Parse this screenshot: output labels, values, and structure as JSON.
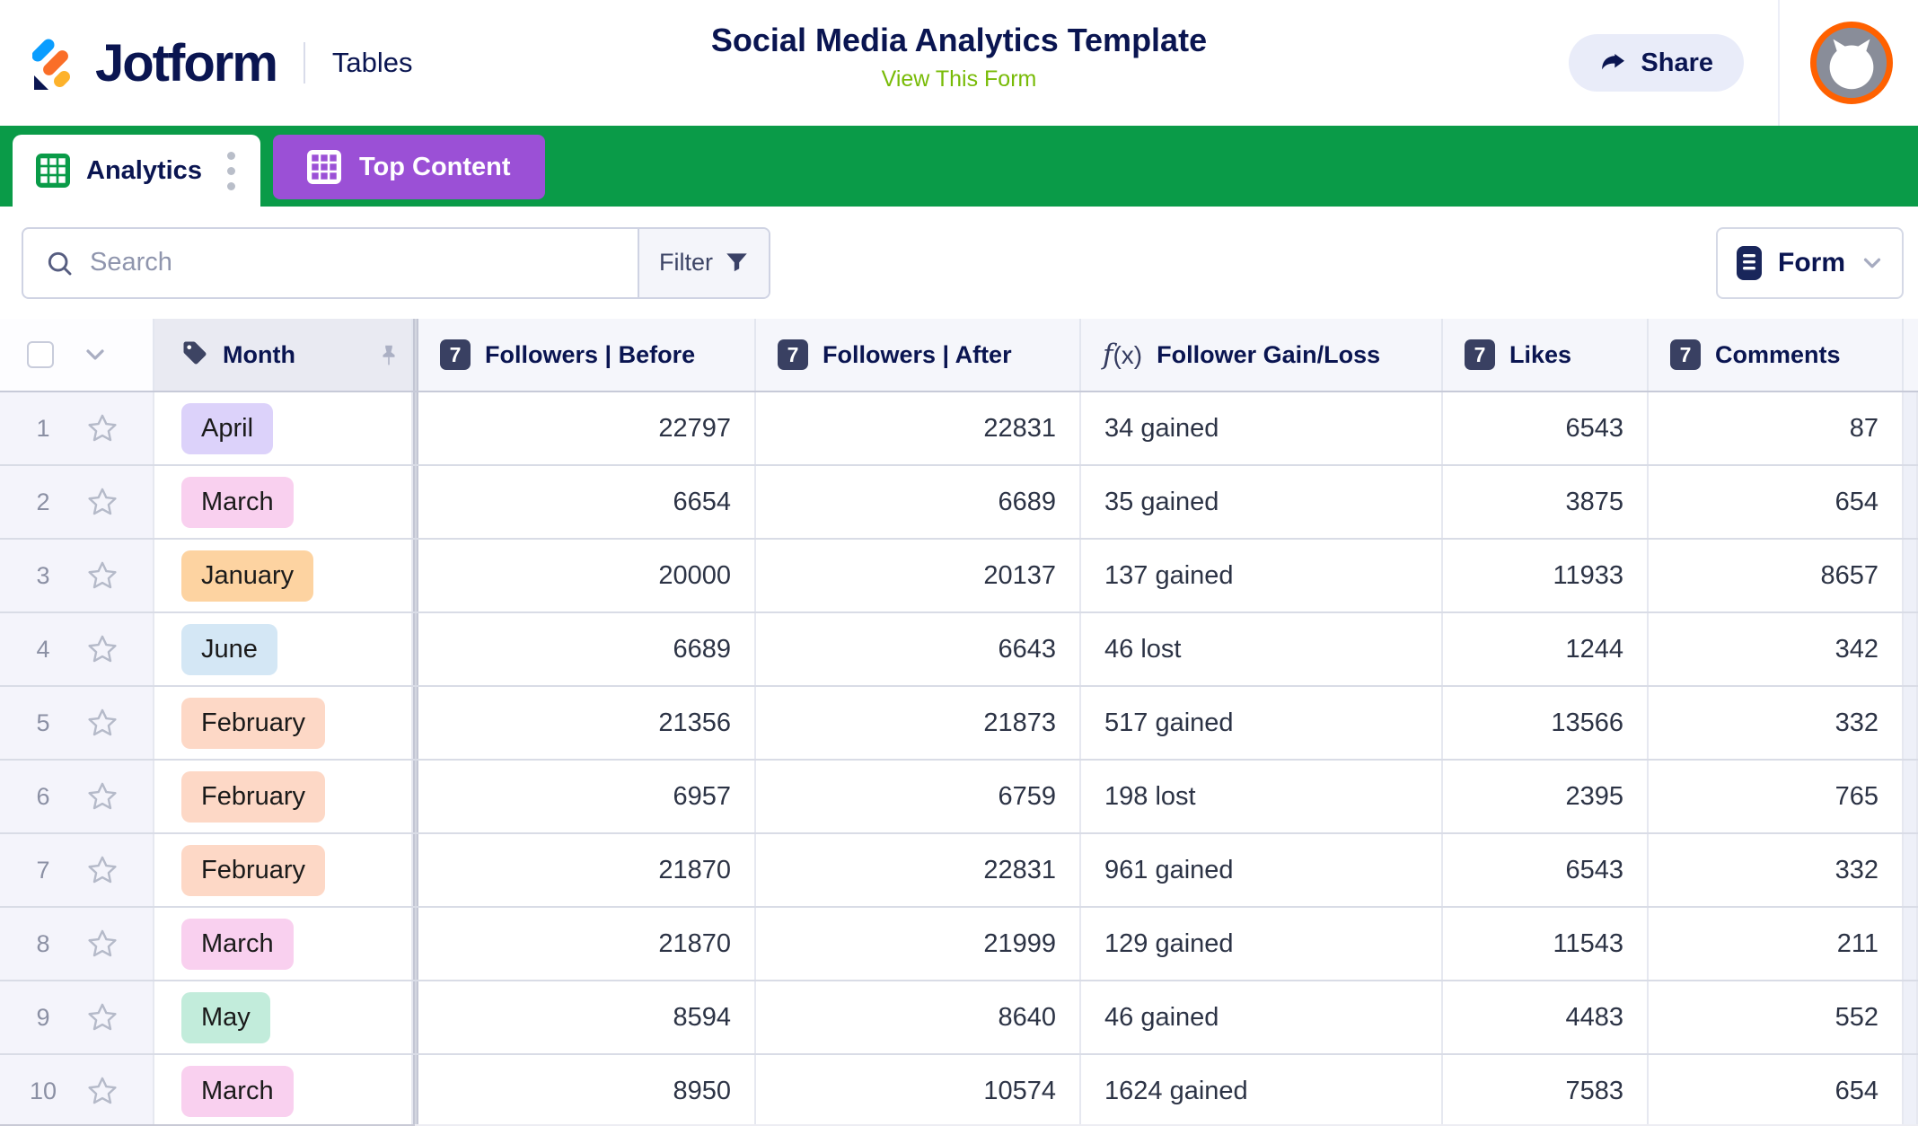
{
  "header": {
    "brand": "Jotform",
    "product": "Tables",
    "title": "Social Media Analytics Template",
    "view_form_label": "View This Form",
    "share_label": "Share"
  },
  "tabs": [
    {
      "label": "Analytics",
      "active": true
    },
    {
      "label": "Top Content",
      "active": false
    }
  ],
  "toolbar": {
    "search_placeholder": "Search",
    "filter_label": "Filter",
    "form_label": "Form"
  },
  "table": {
    "number_badge_label": "7",
    "columns": [
      {
        "label": "Month",
        "icon": "tag",
        "pinned": true
      },
      {
        "label": "Followers | Before",
        "icon": "number"
      },
      {
        "label": "Followers | After",
        "icon": "number"
      },
      {
        "label": "Follower Gain/Loss",
        "icon": "formula"
      },
      {
        "label": "Likes",
        "icon": "number"
      },
      {
        "label": "Comments",
        "icon": "number"
      }
    ],
    "rows": [
      {
        "num": "1",
        "month": "April",
        "chip_color": "#dcd2fa",
        "values": [
          "22797",
          "22831",
          "34 gained",
          "6543",
          "87"
        ]
      },
      {
        "num": "2",
        "month": "March",
        "chip_color": "#f9d0ef",
        "values": [
          "6654",
          "6689",
          "35 gained",
          "3875",
          "654"
        ]
      },
      {
        "num": "3",
        "month": "January",
        "chip_color": "#fdd3a1",
        "values": [
          "20000",
          "20137",
          "137 gained",
          "11933",
          "8657"
        ]
      },
      {
        "num": "4",
        "month": "June",
        "chip_color": "#d4e7f5",
        "values": [
          "6689",
          "6643",
          "46 lost",
          "1244",
          "342"
        ]
      },
      {
        "num": "5",
        "month": "February",
        "chip_color": "#fdd8c6",
        "values": [
          "21356",
          "21873",
          "517 gained",
          "13566",
          "332"
        ]
      },
      {
        "num": "6",
        "month": "February",
        "chip_color": "#fdd8c6",
        "values": [
          "6957",
          "6759",
          "198 lost",
          "2395",
          "765"
        ]
      },
      {
        "num": "7",
        "month": "February",
        "chip_color": "#fdd8c6",
        "values": [
          "21870",
          "22831",
          "961 gained",
          "6543",
          "332"
        ]
      },
      {
        "num": "8",
        "month": "March",
        "chip_color": "#f9d0ef",
        "values": [
          "21870",
          "21999",
          "129 gained",
          "11543",
          "211"
        ]
      },
      {
        "num": "9",
        "month": "May",
        "chip_color": "#c2ecdb",
        "values": [
          "8594",
          "8640",
          "46 gained",
          "4483",
          "552"
        ]
      },
      {
        "num": "10",
        "month": "March",
        "chip_color": "#f9d0ef",
        "values": [
          "8950",
          "10574",
          "1624 gained",
          "7583",
          "654"
        ]
      }
    ]
  },
  "colors": {
    "navy": "#0a1551",
    "link_green": "#78bb07",
    "tab_green": "#0a9b48",
    "tab_purple": "#9b50d6",
    "avatar_ring": "#ff6100"
  }
}
